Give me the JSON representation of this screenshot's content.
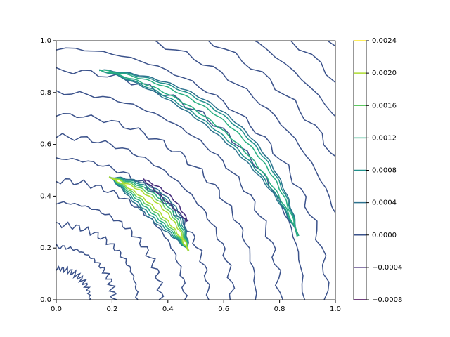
{
  "chart_data": {
    "type": "contour",
    "xlim": [
      0,
      1
    ],
    "ylim": [
      0,
      1
    ],
    "xticks": [
      {
        "value": 0,
        "label": "0.0"
      },
      {
        "value": 0.2,
        "label": "0.2"
      },
      {
        "value": 0.4,
        "label": "0.4"
      },
      {
        "value": 0.6,
        "label": "0.6"
      },
      {
        "value": 0.8,
        "label": "0.8"
      },
      {
        "value": 1,
        "label": "1.0"
      }
    ],
    "yticks": [
      {
        "value": 0,
        "label": "0.0"
      },
      {
        "value": 0.2,
        "label": "0.2"
      },
      {
        "value": 0.4,
        "label": "0.4"
      },
      {
        "value": 0.6,
        "label": "0.6"
      },
      {
        "value": 0.8,
        "label": "0.8"
      },
      {
        "value": 1,
        "label": "1.0"
      }
    ],
    "colorbar_lim": [
      -0.0008,
      0.0024
    ],
    "colorbar_ticks": [
      {
        "value": -0.0008,
        "label": "−0.0008"
      },
      {
        "value": -0.0004,
        "label": "−0.0004"
      },
      {
        "value": 0,
        "label": "0.0000"
      },
      {
        "value": 0.0004,
        "label": "0.0004"
      },
      {
        "value": 0.0008,
        "label": "0.0008"
      },
      {
        "value": 0.0012,
        "label": "0.0012"
      },
      {
        "value": 0.0016,
        "label": "0.0016"
      },
      {
        "value": 0.002,
        "label": "0.0020"
      },
      {
        "value": 0.0024,
        "label": "0.0024"
      }
    ],
    "colors": [
      "#440154",
      "#472d7b",
      "#3b528b",
      "#2c728e",
      "#21918c",
      "#28ae80",
      "#5ec962",
      "#addc30",
      "#fde725"
    ]
  }
}
